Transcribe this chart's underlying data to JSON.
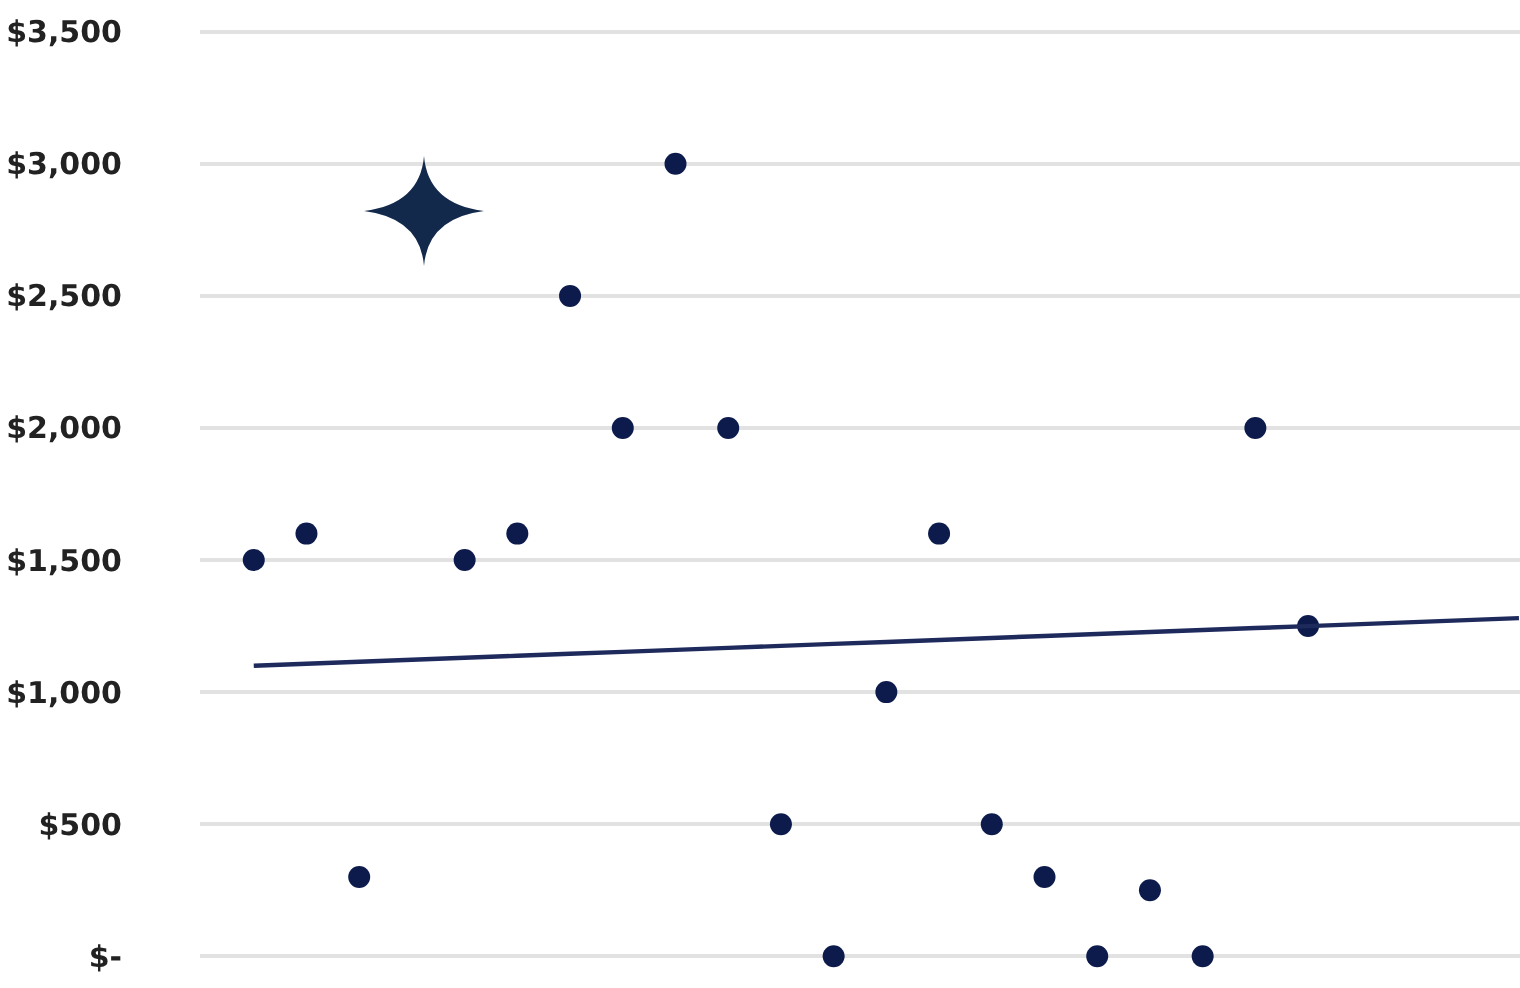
{
  "chart_data": {
    "type": "scatter",
    "tick_labels": "y",
    "grid": "y",
    "categories": [
      null,
      null,
      null,
      null,
      null,
      null,
      null,
      null,
      null,
      null,
      null,
      null,
      null,
      null,
      null,
      null,
      null,
      null,
      null,
      null,
      null,
      null,
      null,
      null,
      null
    ],
    "ylim": [
      -120,
      3620
    ],
    "yticks": [
      {
        "value": 0,
        "label": "$-"
      },
      {
        "value": 500,
        "label": "$500"
      },
      {
        "value": 1000,
        "label": "$1,000"
      },
      {
        "value": 1500,
        "label": "$1,500"
      },
      {
        "value": 2000,
        "label": "$2,000"
      },
      {
        "value": 2500,
        "label": "$2,500"
      },
      {
        "value": 3000,
        "label": "$3,000"
      },
      {
        "value": 3500,
        "label": "$3,500"
      }
    ],
    "series": [
      {
        "color": "#0d1b4c",
        "marker": "circle",
        "values": [
          1500,
          1600,
          300,
          null,
          1500,
          1600,
          2500,
          2000,
          3000,
          2000,
          500,
          0,
          1000,
          1600,
          500,
          300,
          0,
          250,
          0,
          2000,
          1250,
          null,
          null,
          null,
          null
        ]
      },
      {
        "type": "line",
        "color": "#1f2a5c",
        "marker": "none",
        "values": [
          1100,
          1107.5,
          1115,
          1122.5,
          1130,
          1137.5,
          1145,
          1152.5,
          1160,
          1167.5,
          1175,
          1182.5,
          1190,
          1197.5,
          1205,
          1212.5,
          1220,
          1227.5,
          1235,
          1242.5,
          1250,
          1257.5,
          1265,
          1272.5,
          1280
        ]
      }
    ]
  }
}
